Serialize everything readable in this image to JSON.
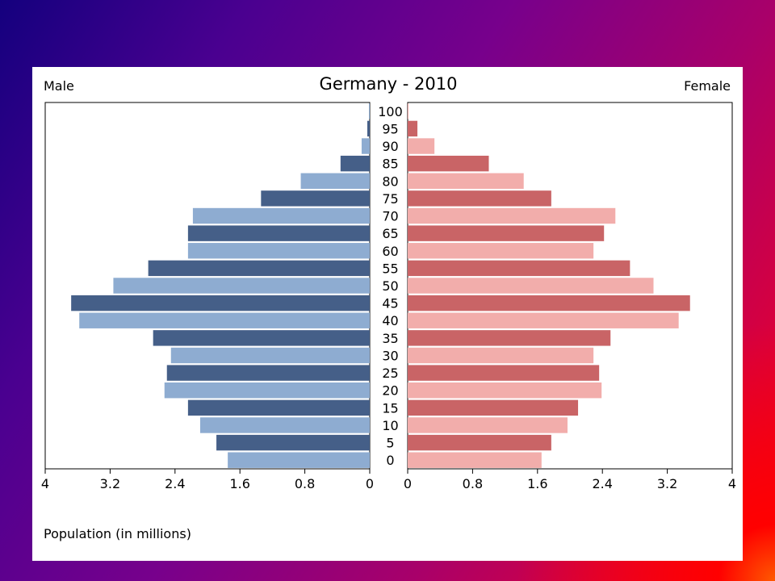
{
  "chart_data": {
    "type": "bar",
    "orientation": "horizontal",
    "title": "Germany - 2010",
    "left_label": "Male",
    "right_label": "Female",
    "xlabel": "Population (in millions)",
    "xlim": [
      0,
      4
    ],
    "x_ticks_left": [
      "4",
      "3.2",
      "2.4",
      "1.6",
      "0.8",
      "0"
    ],
    "x_ticks_right": [
      "0",
      "0.8",
      "1.6",
      "2.4",
      "3.2",
      "4"
    ],
    "tick_values": [
      0,
      0.8,
      1.6,
      2.4,
      3.2,
      4
    ],
    "categories": [
      "100",
      "95",
      "90",
      "85",
      "80",
      "75",
      "70",
      "65",
      "60",
      "55",
      "50",
      "45",
      "40",
      "35",
      "30",
      "25",
      "20",
      "15",
      "10",
      "5",
      "0"
    ],
    "series": [
      {
        "name": "Male",
        "values": [
          0.01,
          0.03,
          0.1,
          0.36,
          0.85,
          1.34,
          2.18,
          2.24,
          2.24,
          2.73,
          3.16,
          3.68,
          3.58,
          2.67,
          2.45,
          2.5,
          2.53,
          2.24,
          2.09,
          1.89,
          1.75
        ],
        "colors": [
          "#455f88",
          "#8eacd1"
        ]
      },
      {
        "name": "Female",
        "values": [
          0.01,
          0.12,
          0.33,
          1.0,
          1.43,
          1.77,
          2.56,
          2.42,
          2.29,
          2.74,
          3.03,
          3.48,
          3.34,
          2.5,
          2.29,
          2.36,
          2.39,
          2.1,
          1.97,
          1.77,
          1.65
        ],
        "colors": [
          "#c96466",
          "#f2adab"
        ]
      }
    ],
    "grid": false,
    "legend": "none"
  }
}
